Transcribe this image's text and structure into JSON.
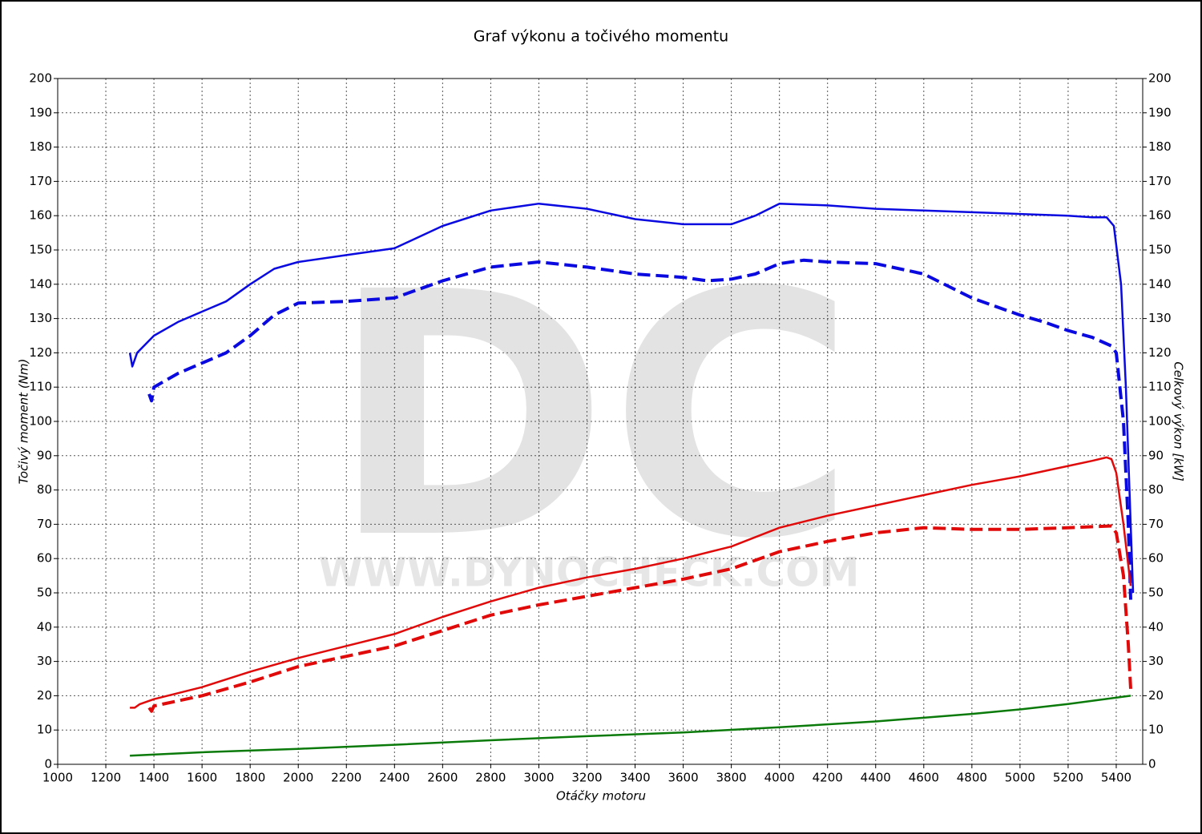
{
  "chart_data": {
    "type": "line",
    "title": "Graf výkonu a točivého momentu",
    "xlabel": "Otáčky motoru",
    "ylabel": "Točivý moment (Nm)",
    "y2label": "Celkový výkon [kW]",
    "watermark": "DC",
    "watermark_url": "WWW.DYNOCHECK.COM",
    "xlim": [
      1000,
      5510
    ],
    "xticks": [
      1000,
      1200,
      1400,
      1600,
      1800,
      2000,
      2200,
      2400,
      2600,
      2800,
      3000,
      3200,
      3400,
      3600,
      3800,
      4000,
      4200,
      4400,
      4600,
      4800,
      5000,
      5200,
      5400
    ],
    "ylim": [
      0,
      200
    ],
    "yticks": [
      0,
      10,
      20,
      30,
      40,
      50,
      60,
      70,
      80,
      90,
      100,
      110,
      120,
      130,
      140,
      150,
      160,
      170,
      180,
      190,
      200
    ],
    "y2lim": [
      0,
      200
    ],
    "y2ticks": [
      0,
      10,
      20,
      30,
      40,
      50,
      60,
      70,
      80,
      90,
      100,
      110,
      120,
      130,
      140,
      150,
      160,
      170,
      180,
      190,
      200
    ],
    "grid": true,
    "series": [
      {
        "color": "#0a0ae0",
        "dash": false,
        "x": [
          1300,
          1310,
          1330,
          1400,
          1500,
          1600,
          1700,
          1800,
          1900,
          2000,
          2200,
          2400,
          2600,
          2800,
          3000,
          3200,
          3400,
          3600,
          3800,
          3900,
          4000,
          4200,
          4400,
          4600,
          4800,
          5000,
          5200,
          5300,
          5360,
          5390,
          5420,
          5440,
          5460,
          5470
        ],
        "values": [
          120,
          116,
          120,
          125,
          129,
          132,
          135,
          140,
          144.5,
          146.5,
          148.5,
          150.5,
          157,
          161.5,
          163.5,
          162,
          159,
          157.5,
          157.5,
          160,
          163.5,
          163,
          162,
          161.5,
          161,
          160.5,
          160,
          159.5,
          159.5,
          157,
          140,
          110,
          70,
          50
        ]
      },
      {
        "color": "#0a0ae0",
        "dash": true,
        "x": [
          1380,
          1390,
          1400,
          1500,
          1600,
          1700,
          1800,
          1900,
          2000,
          2200,
          2400,
          2600,
          2800,
          3000,
          3200,
          3400,
          3600,
          3700,
          3800,
          3900,
          4000,
          4100,
          4200,
          4400,
          4600,
          4800,
          5000,
          5100,
          5200,
          5300,
          5380,
          5400,
          5430,
          5450,
          5460
        ],
        "values": [
          108,
          106,
          110,
          114,
          117,
          120,
          125,
          131,
          134.5,
          135,
          136,
          141,
          145,
          146.5,
          145,
          143,
          142,
          141,
          141.5,
          143,
          146,
          147,
          146.5,
          146,
          143,
          136,
          131,
          129,
          126.5,
          124.5,
          122,
          120,
          100,
          70,
          48
        ]
      },
      {
        "color": "#e00a0a",
        "dash": false,
        "axis": "y2",
        "x": [
          1300,
          1320,
          1340,
          1400,
          1600,
          1800,
          2000,
          2200,
          2400,
          2600,
          2800,
          3000,
          3200,
          3400,
          3600,
          3800,
          4000,
          4200,
          4400,
          4600,
          4800,
          5000,
          5200,
          5300,
          5360,
          5380,
          5400,
          5430,
          5460
        ],
        "values": [
          16.5,
          16.5,
          17.5,
          19,
          22.5,
          27,
          31,
          34.5,
          38,
          43,
          47.5,
          51.5,
          54.5,
          57,
          60,
          63.5,
          69,
          72.5,
          75.5,
          78.5,
          81.5,
          84,
          87,
          88.5,
          89.5,
          89,
          85,
          70,
          52
        ]
      },
      {
        "color": "#e00a0a",
        "dash": true,
        "axis": "y2",
        "x": [
          1380,
          1390,
          1400,
          1600,
          1800,
          2000,
          2200,
          2400,
          2600,
          2800,
          3000,
          3200,
          3400,
          3600,
          3800,
          4000,
          4200,
          4400,
          4600,
          4800,
          5000,
          5200,
          5380,
          5400,
          5430,
          5450,
          5460
        ],
        "values": [
          16.5,
          15.5,
          17,
          20,
          24,
          28.5,
          31.5,
          34.5,
          39,
          43.5,
          46.5,
          49,
          51.5,
          54,
          57,
          62,
          65,
          67.5,
          69,
          68.5,
          68.5,
          69,
          69.5,
          67.5,
          55,
          35,
          22
        ]
      },
      {
        "color": "#0a7a0a",
        "dash": false,
        "axis": "y2",
        "x": [
          1300,
          1600,
          2000,
          2400,
          2800,
          3200,
          3600,
          4000,
          4400,
          4800,
          5000,
          5200,
          5460
        ],
        "values": [
          2.5,
          3.5,
          4.5,
          5.7,
          7,
          8.2,
          9.3,
          10.8,
          12.5,
          14.7,
          16,
          17.6,
          20
        ]
      }
    ]
  }
}
